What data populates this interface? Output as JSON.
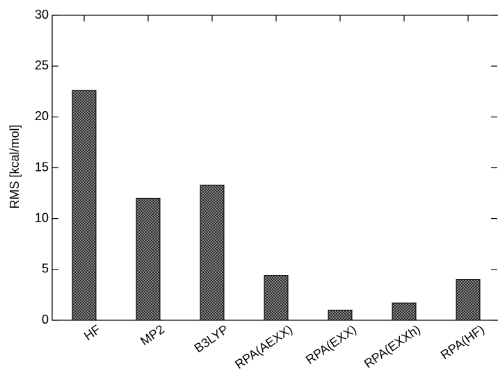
{
  "chart_data": {
    "type": "bar",
    "y_label": "RMS [kcal/mol]",
    "categories": [
      "HF",
      "MP2",
      "B3LYP",
      "RPA(AEXX)",
      "RPA(EXX)",
      "RPA(EXXh)",
      "RPA(HF)"
    ],
    "values": [
      22.6,
      12.0,
      13.3,
      4.4,
      1.0,
      1.7,
      4.0
    ],
    "color": "#555555",
    "ylim": [
      0,
      30
    ],
    "yticks": [
      0,
      5,
      10,
      15,
      20,
      25,
      30
    ],
    "grid": false
  }
}
